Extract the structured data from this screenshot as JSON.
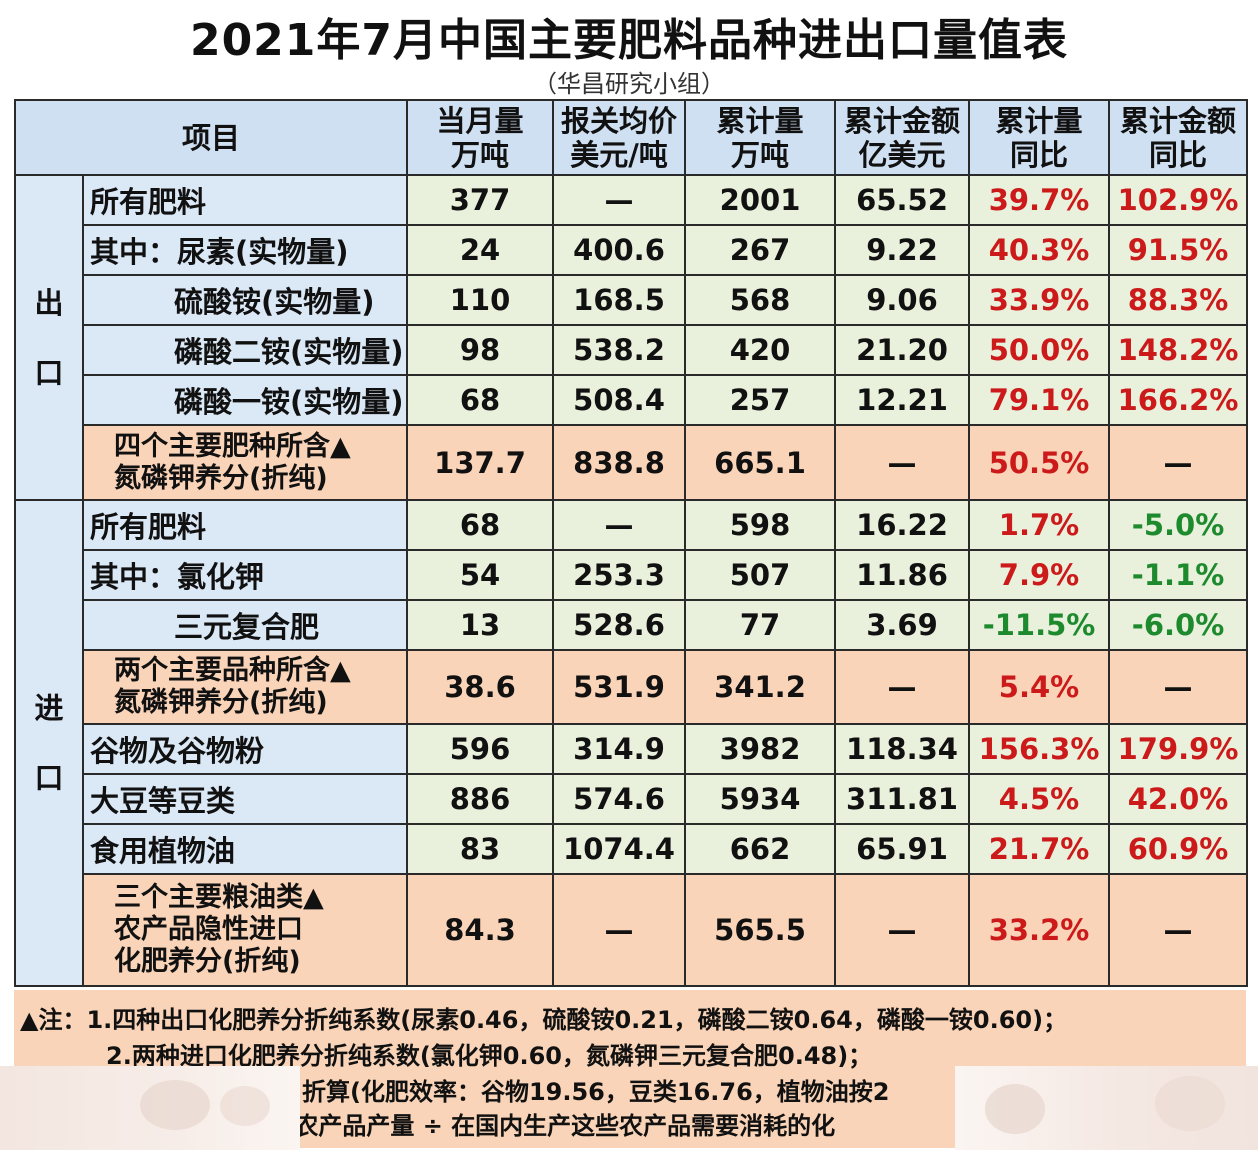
{
  "title": "2021年7月中国主要肥料品种进出口量值表",
  "subtitle": "（华昌研究小组）",
  "headers": [
    {
      "l1": "项目",
      "l2": ""
    },
    {
      "l1": "当月量",
      "l2": "万吨"
    },
    {
      "l1": "报关均价",
      "l2": "美元/吨"
    },
    {
      "l1": "累计量",
      "l2": "万吨"
    },
    {
      "l1": "累计金额",
      "l2": "亿美元"
    },
    {
      "l1": "累计量",
      "l2": "同比"
    },
    {
      "l1": "累计金额",
      "l2": "同比"
    }
  ],
  "section_export": {
    "l1": "出",
    "l2": "口"
  },
  "section_import": {
    "l1": "进",
    "l2": "口"
  },
  "export_rows": [
    {
      "name": "所有肥料",
      "v": [
        "377",
        "—",
        "2001",
        "65.52",
        "39.7%",
        "102.9%"
      ]
    },
    {
      "name": "其中：尿素(实物量)",
      "v": [
        "24",
        "400.6",
        "267",
        "9.22",
        "40.3%",
        "91.5%"
      ]
    },
    {
      "name": "硫酸铵(实物量)",
      "v": [
        "110",
        "168.5",
        "568",
        "9.06",
        "33.9%",
        "88.3%"
      ]
    },
    {
      "name": "磷酸二铵(实物量)",
      "v": [
        "98",
        "538.2",
        "420",
        "21.20",
        "50.0%",
        "148.2%"
      ]
    },
    {
      "name": "磷酸一铵(实物量)",
      "v": [
        "68",
        "508.4",
        "257",
        "12.21",
        "79.1%",
        "166.2%"
      ]
    },
    {
      "name1": "四个主要肥种所含▲",
      "name2": "氮磷钾养分(折纯)",
      "v": [
        "137.7",
        "838.8",
        "665.1",
        "—",
        "50.5%",
        "—"
      ]
    }
  ],
  "import_rows": [
    {
      "name": "所有肥料",
      "v": [
        "68",
        "—",
        "598",
        "16.22",
        "1.7%",
        "-5.0%"
      ]
    },
    {
      "name": "其中：氯化钾",
      "v": [
        "54",
        "253.3",
        "507",
        "11.86",
        "7.9%",
        "-1.1%"
      ]
    },
    {
      "name": "三元复合肥",
      "v": [
        "13",
        "528.6",
        "77",
        "3.69",
        "-11.5%",
        "-6.0%"
      ]
    },
    {
      "name1": "两个主要品种所含▲",
      "name2": "氮磷钾养分(折纯)",
      "v": [
        "38.6",
        "531.9",
        "341.2",
        "—",
        "5.4%",
        "—"
      ]
    },
    {
      "name": "谷物及谷物粉",
      "v": [
        "596",
        "314.9",
        "3982",
        "118.34",
        "156.3%",
        "179.9%"
      ]
    },
    {
      "name": "大豆等豆类",
      "v": [
        "886",
        "574.6",
        "5934",
        "311.81",
        "4.5%",
        "42.0%"
      ]
    },
    {
      "name": "食用植物油",
      "v": [
        "83",
        "1074.4",
        "662",
        "65.91",
        "21.7%",
        "60.9%"
      ]
    },
    {
      "name1": "三个主要粮油类▲",
      "name2": "农产品隐性进口",
      "name3": "化肥养分(折纯)",
      "v": [
        "84.3",
        "—",
        "565.5",
        "—",
        "33.2%",
        "—"
      ]
    }
  ],
  "notes": {
    "line1": "▲注：1.四种出口化肥养分折纯系数(尿素0.46，硫酸铵0.21，磷酸二铵0.64，磷酸一铵0.60)；",
    "line2": "2.两种进口化肥养分折纯系数(氯化钾0.60，氮磷钾三元复合肥0.48)；",
    "line3": "折算(化肥效率：谷物19.56，豆类16.76，植物油按2",
    "line4": "＝ 农产品产量 ÷ 在国内生产这些农产品需要消耗的化"
  },
  "colors": {
    "red": "#cc1a1a",
    "green": "#1e8a2e",
    "header_blue": "#cfe0f2",
    "orange": "#f9d4b8",
    "light_green": "#e9f0dc"
  }
}
